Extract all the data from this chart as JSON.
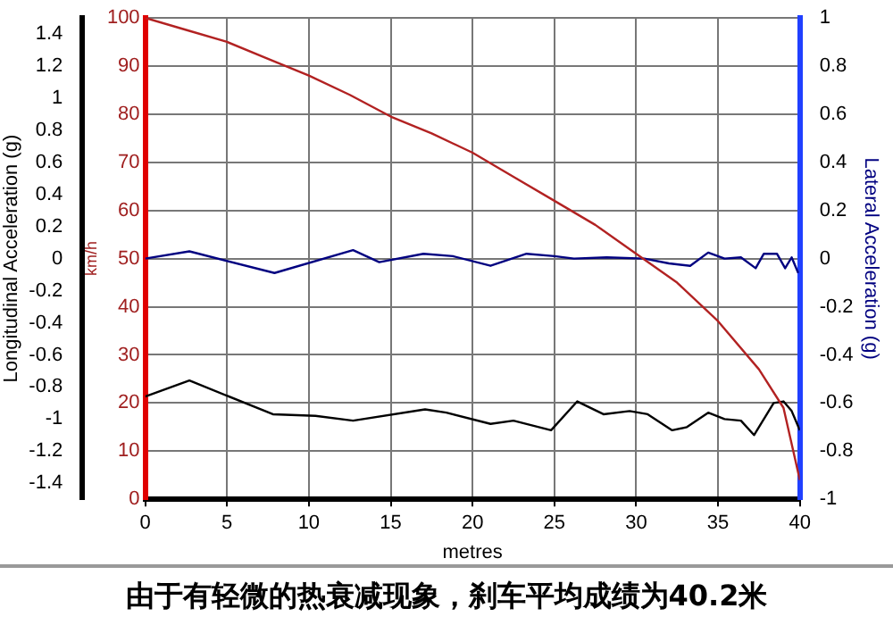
{
  "chart_data": {
    "type": "line",
    "xlabel": "metres",
    "ylabel": "Longitudinal Acceleration (g)",
    "y2label": "km/h",
    "y3label": "Lateral Acceleration (g)",
    "xlim": [
      0,
      40
    ],
    "xticks": [
      0,
      5,
      10,
      15,
      20,
      25,
      30,
      35,
      40
    ],
    "ylim": [
      -1.5,
      1.5
    ],
    "yticks": [
      -1.4,
      -1.2,
      -1,
      -0.8,
      -0.6,
      -0.4,
      -0.2,
      0,
      0.2,
      0.4,
      0.6,
      0.8,
      1,
      1.2,
      1.4
    ],
    "y2lim": [
      0,
      100
    ],
    "y2ticks": [
      0,
      10,
      20,
      30,
      40,
      50,
      60,
      70,
      80,
      90,
      100
    ],
    "y3lim": [
      -1,
      1
    ],
    "y3ticks": [
      -1,
      -0.8,
      -0.6,
      -0.4,
      -0.2,
      0,
      0.2,
      0.4,
      0.6,
      0.8,
      1
    ],
    "grid": true,
    "legend": false,
    "marker": "none",
    "line_style": "solid",
    "annotations": [
      "由于有轻微的热衰减现象，刹车平均成绩为40.2米"
    ],
    "series": [
      {
        "axis": "y2",
        "color": "#b22222",
        "x": [
          0,
          2.5,
          5,
          7.5,
          10,
          12.5,
          15,
          17.5,
          20,
          22.5,
          25,
          27.5,
          30,
          32.5,
          35,
          37.5,
          39,
          40
        ],
        "values": [
          100,
          97.5,
          95,
          91.5,
          88,
          84,
          79.5,
          76,
          72,
          67,
          62,
          57,
          51,
          45,
          37,
          27,
          19,
          4
        ]
      },
      {
        "axis": "y",
        "color": "#000000",
        "x": [
          0,
          2.7,
          7.8,
          10.4,
          12.7,
          17.1,
          18.4,
          21.1,
          22.5,
          24.8,
          26.4,
          28,
          29.6,
          30.7,
          32.2,
          33.1,
          34.4,
          35.4,
          36.4,
          37.2,
          38.4,
          39,
          39.5,
          40
        ],
        "values": [
          -0.86,
          -0.76,
          -0.97,
          -0.98,
          -1.01,
          -0.94,
          -0.96,
          -1.03,
          -1.01,
          -1.07,
          -0.89,
          -0.97,
          -0.95,
          -0.97,
          -1.07,
          -1.05,
          -0.96,
          -1,
          -1.01,
          -1.1,
          -0.9,
          -0.89,
          -0.95,
          -1.07
        ]
      },
      {
        "axis": "y3",
        "color": "#000080",
        "x": [
          0,
          2.7,
          7.9,
          12.7,
          14.3,
          17,
          18.8,
          21.1,
          23.3,
          25,
          26.2,
          28.2,
          30.5,
          32,
          33.3,
          34.4,
          35.4,
          36.4,
          37.3,
          37.8,
          38.6,
          39.1,
          39.5,
          39.9
        ],
        "values": [
          0,
          0.03,
          -0.06,
          0.035,
          -0.015,
          0.02,
          0.01,
          -0.03,
          0.02,
          0.01,
          0,
          0.005,
          0,
          -0.02,
          -0.03,
          0.025,
          0,
          0.005,
          -0.04,
          0.02,
          0.02,
          -0.04,
          0.005,
          -0.06
        ]
      }
    ]
  }
}
